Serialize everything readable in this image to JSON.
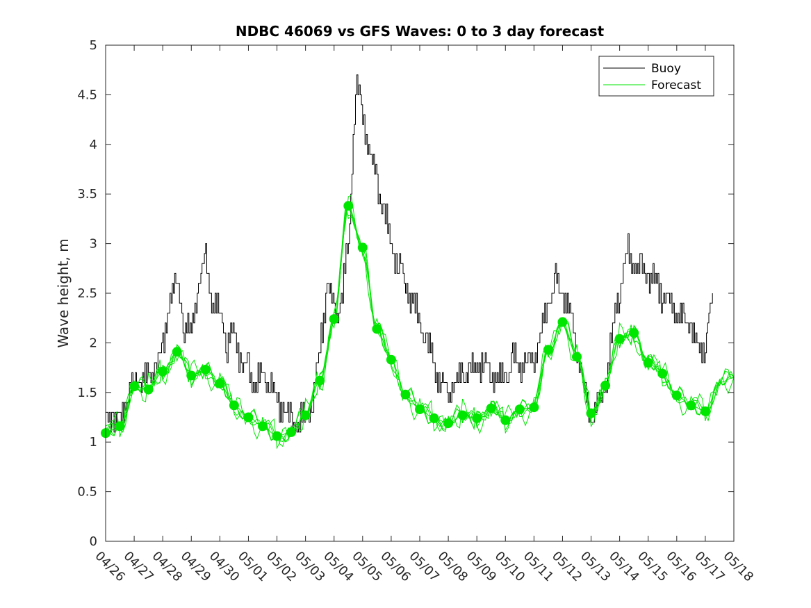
{
  "chart_data": {
    "type": "line",
    "title": "NDBC 46069 vs GFS Waves: 0 to 3 day forecast",
    "xlabel": "",
    "ylabel": "Wave height, m",
    "ylim": [
      0,
      5
    ],
    "yticks": [
      "0",
      "0.5",
      "1",
      "1.5",
      "2",
      "2.5",
      "3",
      "3.5",
      "4",
      "4.5",
      "5"
    ],
    "xlim_days": [
      0,
      22
    ],
    "xticks": [
      "04/26",
      "04/27",
      "04/28",
      "04/29",
      "04/30",
      "05/01",
      "05/02",
      "05/03",
      "05/04",
      "05/05",
      "05/06",
      "05/07",
      "05/08",
      "05/09",
      "05/10",
      "05/11",
      "05/12",
      "05/13",
      "05/14",
      "05/15",
      "05/16",
      "05/17",
      "05/18"
    ],
    "grid": false,
    "legend": {
      "position": "top-right",
      "entries": [
        "Buoy",
        "Forecast"
      ]
    },
    "colors": {
      "buoy": "#000000",
      "forecast": "#00e600",
      "axes": "#262626"
    },
    "series": [
      {
        "name": "Buoy",
        "x": [
          0,
          0.25,
          0.5,
          0.75,
          1,
          1.25,
          1.5,
          1.75,
          2,
          2.25,
          2.5,
          2.75,
          3,
          3.25,
          3.5,
          3.75,
          4,
          4.25,
          4.5,
          4.75,
          5,
          5.25,
          5.5,
          5.75,
          6,
          6.25,
          6.5,
          6.75,
          7,
          7.25,
          7.5,
          7.75,
          8,
          8.25,
          8.5,
          8.75,
          9,
          9.25,
          9.5,
          9.75,
          10,
          10.25,
          10.5,
          10.75,
          11,
          11.25,
          11.5,
          11.75,
          12,
          12.25,
          12.5,
          12.75,
          13,
          13.25,
          13.5,
          13.75,
          14,
          14.25,
          14.5,
          14.75,
          15,
          15.25,
          15.5,
          15.75,
          16,
          16.25,
          16.5,
          16.75,
          17,
          17.25,
          17.5,
          17.75,
          18,
          18.25,
          18.5,
          18.75,
          19,
          19.25,
          19.5,
          19.75,
          20,
          20.25,
          20.5,
          20.75,
          21,
          21.25
        ],
        "values": [
          1.2,
          1.3,
          1.15,
          1.5,
          1.6,
          1.7,
          1.6,
          1.8,
          1.9,
          2.5,
          2.6,
          2.2,
          2.1,
          2.6,
          2.8,
          2.4,
          2.3,
          2.0,
          2.1,
          1.8,
          1.7,
          1.6,
          1.7,
          1.6,
          1.4,
          1.3,
          1.2,
          1.2,
          1.3,
          1.4,
          2.0,
          2.6,
          2.3,
          2.4,
          3.0,
          4.6,
          4.3,
          3.9,
          3.6,
          3.3,
          3.0,
          2.8,
          2.6,
          2.4,
          2.2,
          2.0,
          1.8,
          1.6,
          1.5,
          1.6,
          1.7,
          1.7,
          1.8,
          1.8,
          1.7,
          1.6,
          1.7,
          1.8,
          1.8,
          1.8,
          1.9,
          2.1,
          2.4,
          2.6,
          2.5,
          2.3,
          2.0,
          1.5,
          1.3,
          1.3,
          1.6,
          2.1,
          2.6,
          2.9,
          2.8,
          2.7,
          2.7,
          2.6,
          2.5,
          2.4,
          2.3,
          2.2,
          2.2,
          1.9,
          2.0,
          2.5
        ]
      },
      {
        "name": "Forecast",
        "x": [
          0,
          0.5,
          1,
          1.5,
          2,
          2.5,
          3,
          3.5,
          4,
          4.5,
          5,
          5.5,
          6,
          6.5,
          7,
          7.5,
          8,
          8.5,
          9,
          9.5,
          10,
          10.5,
          11,
          11.5,
          12,
          12.5,
          13,
          13.5,
          14,
          14.5,
          15,
          15.5,
          16,
          16.5,
          17,
          17.5,
          18,
          18.5,
          19,
          19.5,
          20,
          20.5,
          21,
          21.5,
          22
        ],
        "values": [
          1.09,
          1.16,
          1.56,
          1.53,
          1.71,
          1.91,
          1.67,
          1.73,
          1.59,
          1.37,
          1.25,
          1.16,
          1.06,
          1.1,
          1.27,
          1.62,
          2.24,
          3.38,
          2.96,
          2.14,
          1.83,
          1.48,
          1.33,
          1.24,
          1.19,
          1.27,
          1.24,
          1.34,
          1.22,
          1.33,
          1.35,
          1.93,
          2.21,
          1.86,
          1.29,
          1.57,
          2.04,
          2.1,
          1.8,
          1.69,
          1.47,
          1.37,
          1.31,
          1.6,
          1.65
        ]
      },
      {
        "name": "",
        "role": "forecast-initial-values",
        "x": [
          0,
          0.5,
          1,
          1.5,
          2,
          2.5,
          3,
          3.5,
          4,
          4.5,
          5,
          5.5,
          6,
          6.5,
          7,
          7.5,
          8,
          8.5,
          9,
          9.5,
          10,
          10.5,
          11,
          11.5,
          12,
          12.5,
          13,
          13.5,
          14,
          14.5,
          15,
          15.5,
          16,
          16.5,
          17,
          17.5,
          18,
          18.5,
          19,
          19.5,
          20,
          20.5,
          21
        ],
        "values": [
          1.09,
          1.16,
          1.56,
          1.53,
          1.71,
          1.91,
          1.67,
          1.73,
          1.59,
          1.37,
          1.25,
          1.16,
          1.06,
          1.1,
          1.27,
          1.62,
          2.24,
          3.38,
          2.96,
          2.14,
          1.83,
          1.48,
          1.33,
          1.24,
          1.19,
          1.27,
          1.24,
          1.34,
          1.22,
          1.33,
          1.35,
          1.93,
          2.21,
          1.86,
          1.29,
          1.57,
          2.04,
          2.1,
          1.8,
          1.69,
          1.47,
          1.37,
          1.31
        ]
      }
    ]
  }
}
